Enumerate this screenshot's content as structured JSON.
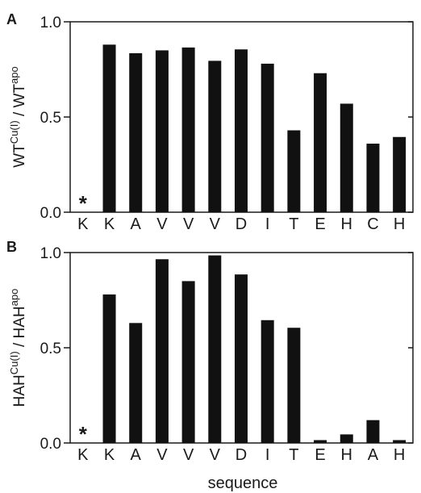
{
  "chart_data": [
    {
      "type": "bar",
      "panel": "A",
      "categories": [
        "K",
        "K",
        "A",
        "V",
        "V",
        "V",
        "D",
        "I",
        "T",
        "E",
        "H",
        "C",
        "H"
      ],
      "values": [
        0.0,
        0.88,
        0.835,
        0.85,
        0.865,
        0.795,
        0.855,
        0.78,
        0.43,
        0.73,
        0.57,
        0.36,
        0.395
      ],
      "markers": [
        {
          "index": 0,
          "symbol": "*"
        }
      ],
      "ylabel": {
        "base": "WT",
        "sup": "Cu(I)",
        "sep": " / ",
        "base2": "WT",
        "sup2": "apo"
      },
      "ylim": [
        0,
        1.0
      ],
      "yticks": [
        0.0,
        0.5,
        1.0
      ],
      "ytick_labels": [
        "0.0",
        "0.5",
        "1.0"
      ],
      "xlabel": ""
    },
    {
      "type": "bar",
      "panel": "B",
      "categories": [
        "K",
        "K",
        "A",
        "V",
        "V",
        "V",
        "D",
        "I",
        "T",
        "E",
        "H",
        "A",
        "H"
      ],
      "values": [
        0.0,
        0.78,
        0.63,
        0.965,
        0.85,
        0.985,
        0.885,
        0.645,
        0.605,
        0.015,
        0.045,
        0.12,
        0.015
      ],
      "markers": [
        {
          "index": 0,
          "symbol": "*"
        }
      ],
      "ylabel": {
        "base": "HAH",
        "sup": "Cu(I)",
        "sep": " / ",
        "base2": "HAH",
        "sup2": "apo"
      },
      "ylim": [
        0,
        1.0
      ],
      "yticks": [
        0.0,
        0.5,
        1.0
      ],
      "ytick_labels": [
        "0.0",
        "0.5",
        "1.0"
      ],
      "xlabel": "sequence"
    }
  ]
}
